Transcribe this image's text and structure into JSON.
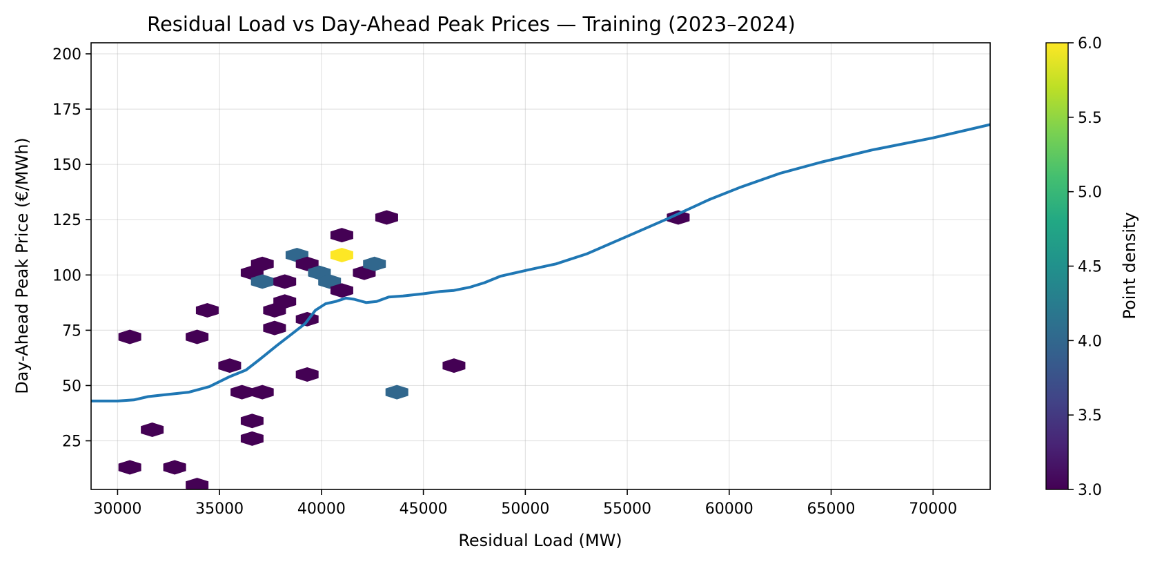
{
  "chart_data": {
    "type": "hexbin",
    "title": "Residual Load vs Day-Ahead Peak Prices — Training (2023–2024)",
    "xlabel": "Residual Load (MW)",
    "ylabel": "Day-Ahead Peak Price (€/MWh)",
    "xlim": [
      28700,
      72800
    ],
    "ylim": [
      3,
      205
    ],
    "xticks": [
      30000,
      35000,
      40000,
      45000,
      50000,
      55000,
      60000,
      65000,
      70000
    ],
    "yticks": [
      25,
      50,
      75,
      100,
      125,
      150,
      175,
      200
    ],
    "grid": true,
    "colormap": "viridis",
    "colorbar": {
      "label": "Point density",
      "range": [
        3.0,
        6.0
      ],
      "ticks": [
        "3.0",
        "3.5",
        "4.0",
        "4.5",
        "5.0",
        "5.5",
        "6.0"
      ]
    },
    "hexbins": [
      {
        "x": 30600,
        "y": 72,
        "count": 3
      },
      {
        "x": 31700,
        "y": 30,
        "count": 3
      },
      {
        "x": 30600,
        "y": 13,
        "count": 3
      },
      {
        "x": 32800,
        "y": 13,
        "count": 3
      },
      {
        "x": 33900,
        "y": 72,
        "count": 3
      },
      {
        "x": 34400,
        "y": 84,
        "count": 3
      },
      {
        "x": 33900,
        "y": 5,
        "count": 3
      },
      {
        "x": 35500,
        "y": 59,
        "count": 3
      },
      {
        "x": 36100,
        "y": 47,
        "count": 3
      },
      {
        "x": 37100,
        "y": 47,
        "count": 3
      },
      {
        "x": 36600,
        "y": 34,
        "count": 3
      },
      {
        "x": 36600,
        "y": 26,
        "count": 3
      },
      {
        "x": 36600,
        "y": 101,
        "count": 3
      },
      {
        "x": 37100,
        "y": 105,
        "count": 3
      },
      {
        "x": 37100,
        "y": 97,
        "count": 4
      },
      {
        "x": 38200,
        "y": 97,
        "count": 3
      },
      {
        "x": 37700,
        "y": 84,
        "count": 3
      },
      {
        "x": 38200,
        "y": 88,
        "count": 3
      },
      {
        "x": 37700,
        "y": 76,
        "count": 3
      },
      {
        "x": 38800,
        "y": 109,
        "count": 4
      },
      {
        "x": 39300,
        "y": 105,
        "count": 3
      },
      {
        "x": 39300,
        "y": 80,
        "count": 3
      },
      {
        "x": 39300,
        "y": 55,
        "count": 3
      },
      {
        "x": 39900,
        "y": 101,
        "count": 4
      },
      {
        "x": 40400,
        "y": 97,
        "count": 4
      },
      {
        "x": 41000,
        "y": 118,
        "count": 3
      },
      {
        "x": 41000,
        "y": 109,
        "count": 6
      },
      {
        "x": 41000,
        "y": 93,
        "count": 3
      },
      {
        "x": 42100,
        "y": 101,
        "count": 3
      },
      {
        "x": 42600,
        "y": 105,
        "count": 4
      },
      {
        "x": 43200,
        "y": 126,
        "count": 3
      },
      {
        "x": 43700,
        "y": 47,
        "count": 4
      },
      {
        "x": 46500,
        "y": 59,
        "count": 3
      },
      {
        "x": 57500,
        "y": 126,
        "count": 3
      }
    ],
    "series": [
      {
        "line_color": "#1f77b4",
        "x": [
          28700,
          30000,
          30800,
          31500,
          32500,
          33500,
          34500,
          35500,
          36300,
          37000,
          37800,
          38500,
          39200,
          39700,
          40200,
          40700,
          41200,
          41600,
          42200,
          42700,
          43300,
          44000,
          45000,
          45800,
          46500,
          47300,
          48000,
          48800,
          50000,
          51500,
          53000,
          55000,
          57000,
          59000,
          60500,
          62500,
          64500,
          67000,
          70000,
          72800
        ],
        "y": [
          43,
          43,
          43.5,
          45,
          46,
          47,
          49.5,
          54,
          57,
          62,
          68,
          73,
          78,
          84,
          87,
          88,
          89.5,
          89,
          87.5,
          88,
          90,
          90.5,
          91.5,
          92.5,
          93,
          94.5,
          96.5,
          99.5,
          102,
          105,
          109.5,
          117.5,
          125.5,
          134,
          139.5,
          146,
          151,
          156.5,
          162,
          168
        ]
      }
    ]
  }
}
